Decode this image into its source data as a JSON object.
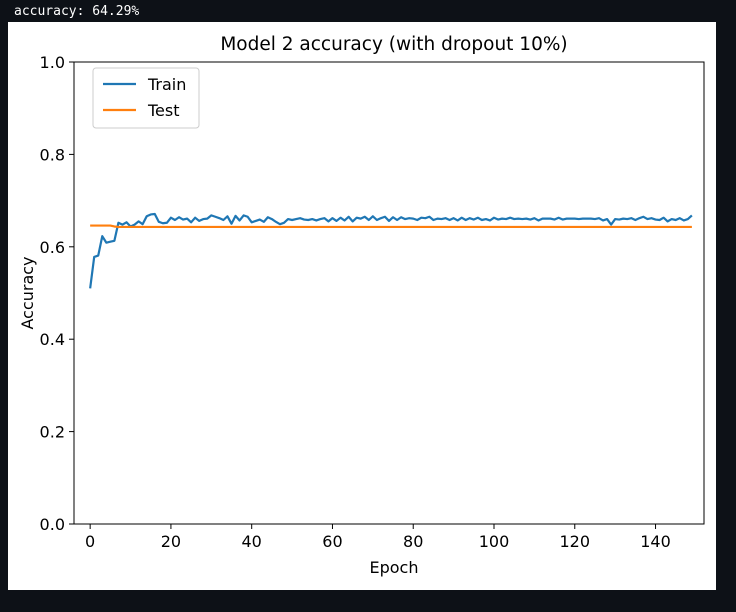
{
  "output": {
    "text": "accuracy: 64.29%"
  },
  "chart_data": {
    "type": "line",
    "title": "Model 2 accuracy (with dropout 10%)",
    "xlabel": "Epoch",
    "ylabel": "Accuracy",
    "xlim": [
      -4,
      152
    ],
    "ylim": [
      0.0,
      1.0
    ],
    "xticks": [
      0,
      20,
      40,
      60,
      80,
      100,
      120,
      140
    ],
    "yticks": [
      0.0,
      0.2,
      0.4,
      0.6,
      0.8,
      1.0
    ],
    "xtick_labels": [
      "0",
      "20",
      "40",
      "60",
      "80",
      "100",
      "120",
      "140"
    ],
    "ytick_labels": [
      "0.0",
      "0.2",
      "0.4",
      "0.6",
      "0.8",
      "1.0"
    ],
    "grid": false,
    "legend_position": "upper left",
    "colors": {
      "Train": "#1f77b4",
      "Test": "#ff7f0e"
    },
    "series": [
      {
        "name": "Train",
        "values": [
          0.51,
          0.578,
          0.581,
          0.623,
          0.609,
          0.611,
          0.613,
          0.652,
          0.648,
          0.653,
          0.644,
          0.648,
          0.655,
          0.649,
          0.666,
          0.67,
          0.671,
          0.654,
          0.651,
          0.652,
          0.663,
          0.658,
          0.664,
          0.659,
          0.661,
          0.653,
          0.663,
          0.656,
          0.66,
          0.661,
          0.668,
          0.665,
          0.662,
          0.658,
          0.666,
          0.65,
          0.667,
          0.657,
          0.668,
          0.665,
          0.653,
          0.656,
          0.659,
          0.654,
          0.664,
          0.66,
          0.654,
          0.649,
          0.652,
          0.66,
          0.658,
          0.66,
          0.662,
          0.659,
          0.658,
          0.66,
          0.657,
          0.66,
          0.662,
          0.655,
          0.662,
          0.656,
          0.663,
          0.657,
          0.665,
          0.655,
          0.663,
          0.661,
          0.665,
          0.658,
          0.666,
          0.658,
          0.662,
          0.665,
          0.656,
          0.664,
          0.658,
          0.664,
          0.66,
          0.662,
          0.661,
          0.658,
          0.663,
          0.662,
          0.665,
          0.658,
          0.661,
          0.66,
          0.662,
          0.658,
          0.662,
          0.657,
          0.663,
          0.658,
          0.662,
          0.659,
          0.663,
          0.658,
          0.66,
          0.657,
          0.663,
          0.659,
          0.661,
          0.66,
          0.663,
          0.66,
          0.661,
          0.66,
          0.661,
          0.659,
          0.662,
          0.657,
          0.661,
          0.661,
          0.661,
          0.659,
          0.663,
          0.659,
          0.661,
          0.661,
          0.661,
          0.66,
          0.661,
          0.661,
          0.661,
          0.66,
          0.662,
          0.657,
          0.66,
          0.648,
          0.66,
          0.659,
          0.661,
          0.66,
          0.662,
          0.658,
          0.662,
          0.665,
          0.66,
          0.662,
          0.659,
          0.658,
          0.663,
          0.655,
          0.66,
          0.658,
          0.662,
          0.657,
          0.66,
          0.668
        ]
      },
      {
        "name": "Test",
        "values": [
          0.646,
          0.646,
          0.646,
          0.646,
          0.646,
          0.646,
          0.644,
          0.643,
          0.643,
          0.643,
          0.643,
          0.643,
          0.643,
          0.643,
          0.643,
          0.643,
          0.643,
          0.643,
          0.643,
          0.643,
          0.643,
          0.643,
          0.643,
          0.643,
          0.643,
          0.643,
          0.643,
          0.643,
          0.643,
          0.643,
          0.643,
          0.643,
          0.643,
          0.643,
          0.643,
          0.643,
          0.643,
          0.643,
          0.643,
          0.643,
          0.643,
          0.643,
          0.643,
          0.643,
          0.643,
          0.643,
          0.643,
          0.643,
          0.643,
          0.643,
          0.643,
          0.643,
          0.643,
          0.643,
          0.643,
          0.643,
          0.643,
          0.643,
          0.643,
          0.643,
          0.643,
          0.643,
          0.643,
          0.643,
          0.643,
          0.643,
          0.643,
          0.643,
          0.643,
          0.643,
          0.643,
          0.643,
          0.643,
          0.643,
          0.643,
          0.643,
          0.643,
          0.643,
          0.643,
          0.643,
          0.643,
          0.643,
          0.643,
          0.643,
          0.643,
          0.643,
          0.643,
          0.643,
          0.643,
          0.643,
          0.643,
          0.643,
          0.643,
          0.643,
          0.643,
          0.643,
          0.643,
          0.643,
          0.643,
          0.643,
          0.643,
          0.643,
          0.643,
          0.643,
          0.643,
          0.643,
          0.643,
          0.643,
          0.643,
          0.643,
          0.643,
          0.643,
          0.643,
          0.643,
          0.643,
          0.643,
          0.643,
          0.643,
          0.643,
          0.643,
          0.643,
          0.643,
          0.643,
          0.643,
          0.643,
          0.643,
          0.643,
          0.643,
          0.643,
          0.643,
          0.643,
          0.643,
          0.643,
          0.643,
          0.643,
          0.643,
          0.643,
          0.643,
          0.643,
          0.643,
          0.643,
          0.643,
          0.643,
          0.643,
          0.643,
          0.643,
          0.643,
          0.643,
          0.643,
          0.643
        ]
      }
    ]
  }
}
